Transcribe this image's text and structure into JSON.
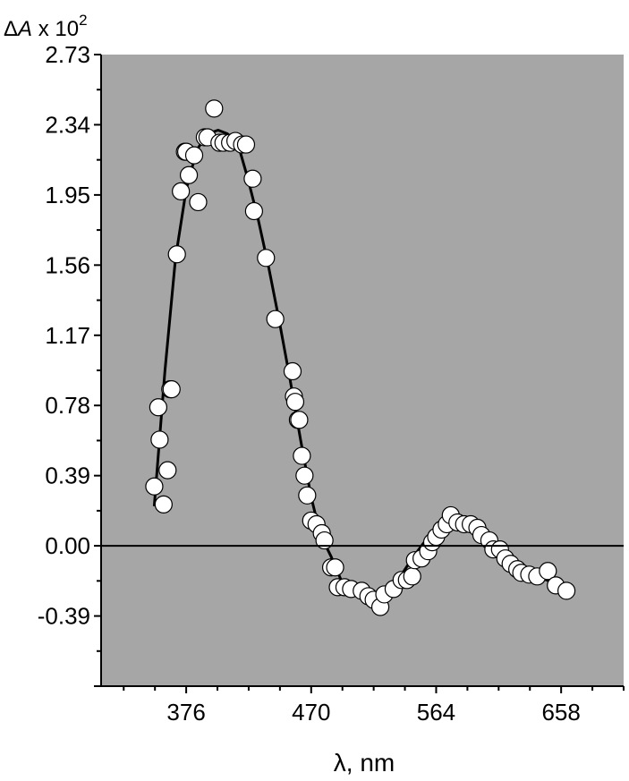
{
  "chart_data": {
    "type": "scatter",
    "title": "",
    "xlabel": "λ, nm",
    "ylabel": {
      "delta": "Δ",
      "symbol": "A",
      "mult": " x 10",
      "exp": "2"
    },
    "xlim": [
      312,
      705
    ],
    "ylim": [
      -0.78,
      2.73
    ],
    "x_ticks": [
      376,
      470,
      564,
      658
    ],
    "x_tick_labels": [
      "376",
      "470",
      "564",
      "658"
    ],
    "y_ticks": [
      2.73,
      2.34,
      1.95,
      1.56,
      1.17,
      0.78,
      0.39,
      0.0,
      -0.39
    ],
    "y_tick_labels": [
      "2.73",
      "2.34",
      "1.95",
      "1.56",
      "1.17",
      "0.78",
      "0.39",
      "0.00",
      "-0.39"
    ],
    "zero_line": 0,
    "background_color": "#a6a6a6",
    "marker_fill": "#ffffff",
    "line_color": "#000000",
    "series": [
      {
        "kind": "points",
        "x": [
          352,
          355,
          356,
          359,
          362,
          364,
          365,
          369,
          372,
          375,
          376,
          378,
          382,
          385,
          390,
          392,
          397,
          401,
          404,
          409,
          413,
          418,
          421,
          426,
          427,
          436,
          443,
          456,
          457,
          458,
          460,
          461,
          463,
          465,
          467,
          470,
          474,
          478,
          480,
          485,
          488,
          490,
          495,
          500,
          508,
          513,
          517,
          522,
          525,
          532,
          538,
          542,
          546,
          548,
          553,
          558,
          561,
          564,
          568,
          572,
          575,
          580,
          585,
          590,
          595,
          598,
          604,
          607,
          612,
          616,
          620,
          625,
          628,
          634,
          640,
          648,
          654,
          662
        ],
        "y": [
          0.33,
          0.77,
          0.59,
          0.23,
          0.42,
          0.87,
          0.87,
          1.62,
          1.97,
          2.19,
          2.19,
          2.06,
          2.17,
          1.91,
          2.27,
          2.27,
          2.43,
          2.24,
          2.24,
          2.24,
          2.25,
          2.23,
          2.23,
          2.04,
          1.86,
          1.6,
          1.26,
          0.97,
          0.83,
          0.8,
          0.7,
          0.7,
          0.5,
          0.39,
          0.28,
          0.14,
          0.12,
          0.07,
          0.03,
          -0.12,
          -0.12,
          -0.23,
          -0.23,
          -0.24,
          -0.25,
          -0.28,
          -0.3,
          -0.34,
          -0.27,
          -0.24,
          -0.19,
          -0.19,
          -0.17,
          -0.08,
          -0.07,
          -0.03,
          0.02,
          0.05,
          0.09,
          0.12,
          0.17,
          0.13,
          0.12,
          0.12,
          0.1,
          0.06,
          0.03,
          -0.02,
          -0.02,
          -0.07,
          -0.1,
          -0.13,
          -0.15,
          -0.16,
          -0.17,
          -0.14,
          -0.22,
          -0.25
        ]
      },
      {
        "kind": "fit",
        "x": [
          352,
          360,
          368,
          376,
          384,
          392,
          400,
          407,
          415,
          422,
          430,
          438,
          446,
          454,
          462,
          470,
          477,
          485,
          493,
          500,
          508,
          516,
          523,
          530,
          538,
          546,
          554,
          562,
          570,
          577,
          585,
          592,
          600,
          608,
          616,
          623,
          631,
          639,
          647,
          655,
          662
        ],
        "y": [
          0.22,
          0.97,
          1.6,
          1.98,
          2.2,
          2.29,
          2.31,
          2.29,
          2.23,
          2.05,
          1.82,
          1.55,
          1.25,
          0.93,
          0.59,
          0.27,
          0.06,
          -0.06,
          -0.2,
          -0.25,
          -0.26,
          -0.28,
          -0.28,
          -0.24,
          -0.16,
          -0.07,
          0.01,
          0.08,
          0.14,
          0.15,
          0.12,
          0.08,
          0.05,
          0.0,
          -0.06,
          -0.1,
          -0.14,
          -0.17,
          -0.19,
          -0.21,
          -0.24
        ]
      }
    ]
  }
}
